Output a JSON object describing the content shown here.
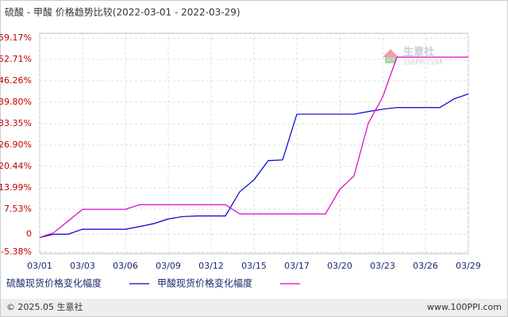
{
  "chart_data": {
    "type": "line",
    "title": "硫酸 - 甲酸 价格趋势比较(2022-03-01 - 2022-03-29)",
    "watermark": [
      "生意社",
      "100PPI.COM"
    ],
    "footer": {
      "left": "© 2025.05 生意社",
      "right": "www.100PPI.com"
    },
    "categories": [
      "03/01",
      null,
      null,
      "03/03",
      null,
      null,
      "03/06",
      null,
      null,
      "03/09",
      null,
      null,
      "03/12",
      null,
      null,
      "03/15",
      null,
      null,
      "03/17",
      null,
      null,
      "03/20",
      null,
      null,
      "03/23",
      null,
      null,
      "03/26",
      null,
      null,
      "03/29"
    ],
    "series": [
      {
        "name": "硫酸现货价格变化幅度",
        "color": "#0000cc",
        "values": [
          -1,
          0,
          0,
          1.5,
          1.5,
          1.5,
          1.5,
          2.3,
          3.2,
          4.6,
          5.3,
          5.5,
          5.5,
          5.5,
          12.8,
          16.4,
          22.2,
          22.4,
          36.2,
          36.2,
          36.2,
          36.2,
          36.2,
          37.0,
          37.7,
          38.2,
          38.2,
          38.2,
          38.2,
          40.8,
          42.3
        ]
      },
      {
        "name": "甲酸现货价格变化幅度",
        "color": "#dd00cc",
        "values": [
          -1,
          0.5,
          4,
          7.5,
          7.5,
          7.5,
          7.5,
          8.9,
          8.9,
          8.9,
          8.9,
          8.9,
          8.9,
          8.9,
          6.1,
          6.1,
          6.1,
          6.1,
          6.1,
          6.1,
          6.1,
          13.5,
          17.6,
          33.5,
          41.3,
          53.4,
          53.4,
          53.4,
          53.4,
          53.4,
          53.4
        ]
      }
    ],
    "ylim": [
      -5.38,
      59.17
    ],
    "yticks": [
      {
        "value": 59.17,
        "label": "59.17%"
      },
      {
        "value": 52.71,
        "label": "52.71%"
      },
      {
        "value": 46.26,
        "label": "46.26%"
      },
      {
        "value": 39.8,
        "label": "39.80%"
      },
      {
        "value": 33.35,
        "label": "33.35%"
      },
      {
        "value": 26.9,
        "label": "26.90%"
      },
      {
        "value": 20.44,
        "label": "20.44%"
      },
      {
        "value": 13.99,
        "label": "13.99%"
      },
      {
        "value": 7.53,
        "label": "7.53%"
      },
      0,
      {
        "value": -5.38,
        "label": "-5.38%"
      }
    ],
    "grid": true
  }
}
